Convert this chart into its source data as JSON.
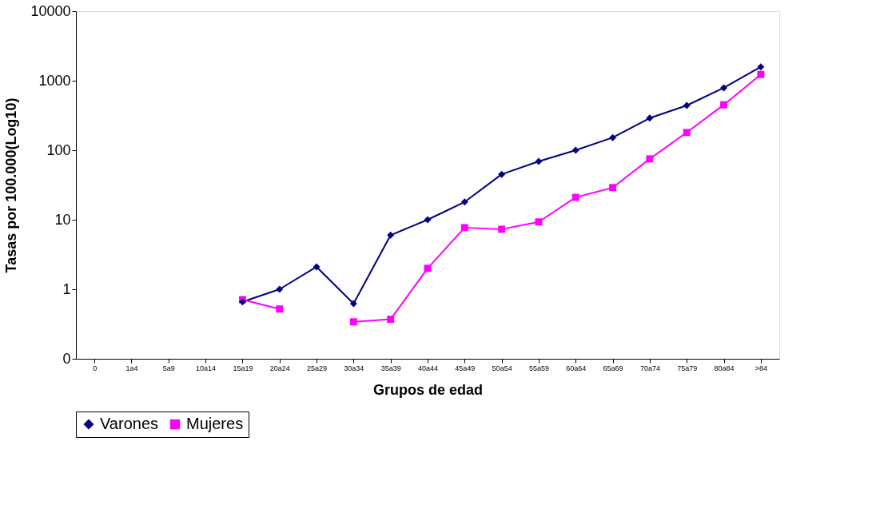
{
  "chart_data": {
    "type": "line",
    "xlabel": "Grupos de edad",
    "ylabel": "Tasas por 100.000(Log10)",
    "categories": [
      "0",
      "1a4",
      "5a9",
      "10a14",
      "15a19",
      "20a24",
      "25a29",
      "30a34",
      "35a39",
      "40a44",
      "45a49",
      "50a54",
      "55a59",
      "60a64",
      "65a69",
      "70a74",
      "75a79",
      "80a84",
      ">84"
    ],
    "series": [
      {
        "name": "Varones",
        "color": "#000080",
        "marker": "diamond",
        "values": [
          null,
          null,
          null,
          null,
          0.66,
          1.0,
          2.1,
          0.62,
          6.0,
          10,
          18,
          45,
          69,
          100,
          152,
          290,
          440,
          790,
          1580
        ]
      },
      {
        "name": "Mujeres",
        "color": "#ff00ff",
        "marker": "square",
        "values": [
          null,
          null,
          null,
          null,
          0.71,
          0.52,
          null,
          0.34,
          0.37,
          2.0,
          7.7,
          7.3,
          9.3,
          21,
          29,
          75,
          180,
          450,
          1230
        ]
      }
    ],
    "log": "y",
    "ylim": [
      0.1,
      10000
    ],
    "yticks": [
      {
        "value": 0.1,
        "label": "0"
      },
      1,
      10,
      100,
      1000,
      10000
    ],
    "grid": false,
    "legend": "bottom",
    "line_style": "solid"
  }
}
